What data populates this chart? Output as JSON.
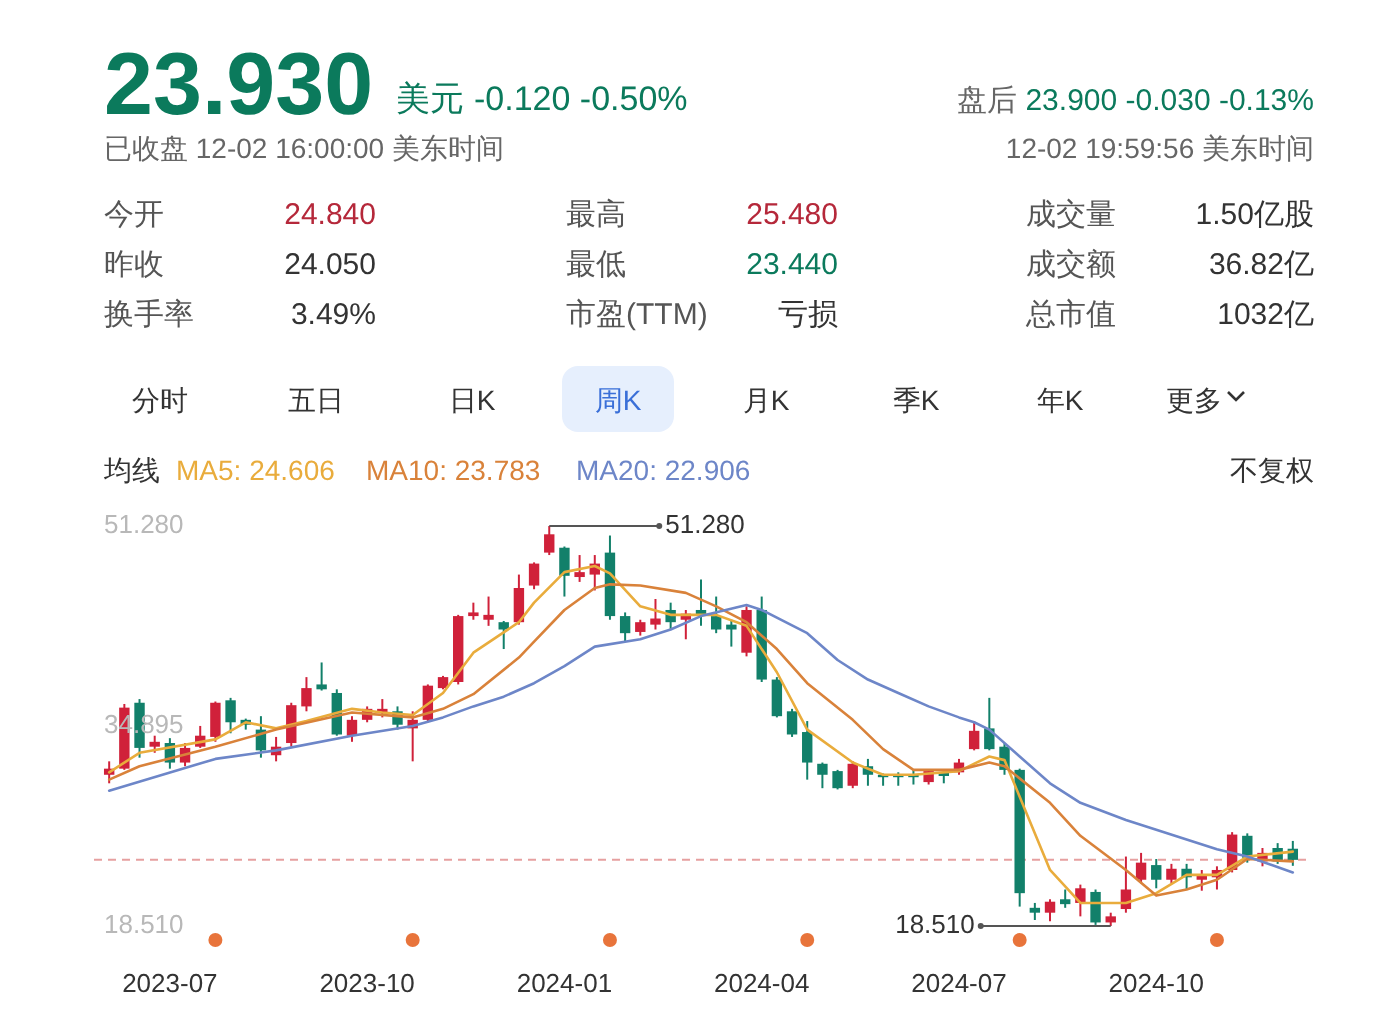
{
  "chart_data": [
    {
      "type": "other",
      "title": "23.930",
      "annotations": [
        "美元",
        "-0.120 -0.50%",
        "盘后",
        "23.900 -0.030 -0.13%",
        "已收盘 12-02 16:00:00 美东时间",
        "12-02 19:59:56 美东时间",
        "今开",
        "24.840",
        "最高",
        "25.480",
        "成交量",
        "1.50亿股",
        "昨收",
        "24.050",
        "最低",
        "23.440",
        "成交额",
        "36.82亿",
        "换手率",
        "3.49%",
        "市盈(TTM)",
        "亏损",
        "总市值",
        "1032亿",
        "分时",
        "五日",
        "日K",
        "周K",
        "月K",
        "季K",
        "年K",
        "更多"
      ]
    },
    {
      "type": "candlestick",
      "x": [
        "2023-06-05",
        "2023-06-12",
        "2023-06-19",
        "2023-06-26",
        "2023-07-03",
        "2023-07-10",
        "2023-07-17",
        "2023-07-24",
        "2023-07-31",
        "2023-08-07",
        "2023-08-14",
        "2023-08-21",
        "2023-08-28",
        "2023-09-04",
        "2023-09-11",
        "2023-09-18",
        "2023-09-25",
        "2023-10-02",
        "2023-10-09",
        "2023-10-16",
        "2023-10-23",
        "2023-10-30",
        "2023-11-06",
        "2023-11-13",
        "2023-11-20",
        "2023-11-27",
        "2023-12-04",
        "2023-12-11",
        "2023-12-18",
        "2023-12-25",
        "2024-01-01",
        "2024-01-08",
        "2024-01-15",
        "2024-01-22",
        "2024-01-29",
        "2024-02-05",
        "2024-02-12",
        "2024-02-19",
        "2024-02-26",
        "2024-03-04",
        "2024-03-11",
        "2024-03-18",
        "2024-03-25",
        "2024-04-01",
        "2024-04-08",
        "2024-04-15",
        "2024-04-22",
        "2024-04-29",
        "2024-05-06",
        "2024-05-13",
        "2024-05-20",
        "2024-05-27",
        "2024-06-03",
        "2024-06-10",
        "2024-06-17",
        "2024-06-24",
        "2024-07-01",
        "2024-07-08",
        "2024-07-15",
        "2024-07-22",
        "2024-07-29",
        "2024-08-05",
        "2024-08-12",
        "2024-08-19",
        "2024-08-26",
        "2024-09-02",
        "2024-09-09",
        "2024-09-16",
        "2024-09-23",
        "2024-09-30",
        "2024-10-07",
        "2024-10-14",
        "2024-10-21",
        "2024-10-28",
        "2024-11-04",
        "2024-11-11",
        "2024-11-18",
        "2024-11-25",
        "2024-12-02"
      ],
      "ohlc": [
        [
          30.9,
          32.0,
          30.2,
          31.4
        ],
        [
          31.4,
          36.7,
          31.3,
          36.4
        ],
        [
          36.8,
          37.1,
          32.3,
          33.1
        ],
        [
          33.2,
          34.1,
          32.7,
          33.6
        ],
        [
          33.5,
          33.9,
          31.4,
          31.9
        ],
        [
          31.9,
          33.5,
          31.6,
          33.1
        ],
        [
          33.2,
          34.9,
          33.1,
          34.1
        ],
        [
          34.0,
          36.9,
          33.6,
          36.8
        ],
        [
          37.0,
          37.2,
          34.3,
          35.2
        ],
        [
          35.4,
          35.5,
          34.6,
          35.0
        ],
        [
          34.6,
          35.7,
          32.3,
          32.9
        ],
        [
          32.5,
          34.0,
          32.0,
          33.2
        ],
        [
          33.5,
          36.8,
          33.2,
          36.6
        ],
        [
          36.5,
          38.9,
          36.1,
          38.0
        ],
        [
          38.3,
          40.1,
          37.8,
          37.9
        ],
        [
          37.6,
          37.9,
          34.1,
          34.2
        ],
        [
          34.1,
          35.7,
          33.6,
          35.4
        ],
        [
          35.4,
          36.5,
          35.2,
          36.3
        ],
        [
          36.0,
          37.1,
          35.6,
          36.3
        ],
        [
          36.1,
          36.5,
          34.6,
          35.0
        ],
        [
          34.7,
          36.1,
          32.0,
          35.4
        ],
        [
          35.4,
          38.3,
          35.2,
          38.2
        ],
        [
          38.0,
          39.0,
          37.9,
          38.9
        ],
        [
          38.5,
          44.0,
          38.3,
          43.9
        ],
        [
          43.9,
          45.0,
          43.6,
          44.2
        ],
        [
          43.6,
          45.5,
          43.1,
          44.0
        ],
        [
          43.4,
          43.5,
          41.2,
          42.8
        ],
        [
          43.4,
          47.3,
          43.2,
          46.2
        ],
        [
          46.4,
          48.3,
          46.1,
          48.2
        ],
        [
          49.1,
          51.28,
          48.9,
          50.6
        ],
        [
          49.5,
          49.6,
          45.5,
          47.2
        ],
        [
          47.1,
          48.9,
          46.7,
          47.5
        ],
        [
          47.3,
          48.9,
          46.0,
          48.2
        ],
        [
          49.1,
          50.5,
          43.6,
          43.9
        ],
        [
          43.9,
          44.2,
          41.8,
          42.5
        ],
        [
          42.6,
          43.6,
          42.3,
          43.4
        ],
        [
          43.2,
          45.3,
          42.8,
          43.7
        ],
        [
          44.4,
          45.0,
          42.8,
          43.4
        ],
        [
          43.6,
          44.4,
          42.0,
          44.1
        ],
        [
          44.4,
          46.9,
          43.1,
          44.0
        ],
        [
          43.9,
          45.5,
          42.5,
          42.8
        ],
        [
          43.2,
          43.6,
          41.4,
          42.8
        ],
        [
          40.9,
          44.7,
          40.6,
          44.4
        ],
        [
          44.4,
          45.5,
          38.5,
          38.7
        ],
        [
          38.7,
          38.9,
          35.6,
          35.7
        ],
        [
          36.1,
          36.3,
          34.0,
          34.2
        ],
        [
          34.4,
          35.3,
          30.5,
          31.9
        ],
        [
          31.8,
          31.9,
          29.8,
          30.9
        ],
        [
          31.2,
          31.3,
          29.7,
          29.8
        ],
        [
          30.0,
          32.0,
          29.8,
          31.8
        ],
        [
          31.6,
          32.2,
          30.0,
          30.9
        ],
        [
          30.9,
          31.0,
          30.0,
          30.7
        ],
        [
          30.9,
          31.1,
          30.0,
          30.7
        ],
        [
          30.9,
          31.3,
          30.1,
          30.7
        ],
        [
          30.3,
          31.3,
          30.1,
          31.2
        ],
        [
          31.1,
          31.3,
          30.2,
          30.8
        ],
        [
          31.1,
          32.2,
          30.9,
          31.9
        ],
        [
          33.0,
          35.3,
          32.9,
          34.5
        ],
        [
          34.7,
          37.2,
          32.9,
          33.0
        ],
        [
          33.2,
          33.5,
          30.9,
          31.3
        ],
        [
          31.3,
          31.4,
          20.1,
          21.2
        ],
        [
          20.0,
          20.4,
          19.0,
          19.6
        ],
        [
          19.6,
          20.7,
          18.9,
          20.5
        ],
        [
          20.7,
          21.5,
          20.0,
          20.3
        ],
        [
          20.4,
          21.9,
          19.3,
          21.6
        ],
        [
          21.3,
          21.5,
          18.6,
          18.8
        ],
        [
          18.8,
          19.6,
          18.51,
          19.3
        ],
        [
          19.9,
          24.2,
          19.6,
          21.5
        ],
        [
          22.3,
          24.5,
          22.0,
          23.7
        ],
        [
          23.5,
          24.0,
          21.6,
          22.3
        ],
        [
          22.3,
          23.6,
          22.0,
          23.2
        ],
        [
          23.2,
          23.6,
          21.5,
          22.5
        ],
        [
          22.3,
          23.1,
          21.4,
          22.7
        ],
        [
          22.5,
          23.4,
          21.5,
          23.1
        ],
        [
          23.1,
          26.2,
          22.9,
          26.0
        ],
        [
          25.9,
          26.1,
          23.7,
          24.1
        ],
        [
          23.8,
          24.9,
          23.4,
          24.5
        ],
        [
          24.9,
          25.3,
          23.6,
          23.8
        ],
        [
          24.84,
          25.48,
          23.44,
          23.93
        ]
      ],
      "colors": [
        "#d0213a",
        "#d0213a",
        "#12806a",
        "#d0213a",
        "#12806a",
        "#d0213a",
        "#d0213a",
        "#d0213a",
        "#12806a",
        "#12806a",
        "#12806a",
        "#d0213a",
        "#d0213a",
        "#d0213a",
        "#12806a",
        "#12806a",
        "#d0213a",
        "#d0213a",
        "#d0213a",
        "#12806a",
        "#d0213a",
        "#d0213a",
        "#d0213a",
        "#d0213a",
        "#d0213a",
        "#d0213a",
        "#12806a",
        "#d0213a",
        "#d0213a",
        "#d0213a",
        "#12806a",
        "#d0213a",
        "#d0213a",
        "#12806a",
        "#12806a",
        "#d0213a",
        "#d0213a",
        "#12806a",
        "#d0213a",
        "#12806a",
        "#12806a",
        "#12806a",
        "#d0213a",
        "#12806a",
        "#12806a",
        "#12806a",
        "#12806a",
        "#12806a",
        "#12806a",
        "#d0213a",
        "#12806a",
        "#12806a",
        "#12806a",
        "#12806a",
        "#d0213a",
        "#12806a",
        "#d0213a",
        "#d0213a",
        "#12806a",
        "#12806a",
        "#12806a",
        "#12806a",
        "#d0213a",
        "#12806a",
        "#d0213a",
        "#12806a",
        "#d0213a",
        "#d0213a",
        "#d0213a",
        "#12806a",
        "#d0213a",
        "#12806a",
        "#d0213a",
        "#d0213a",
        "#d0213a",
        "#12806a",
        "#d0213a",
        "#12806a",
        "#12806a"
      ],
      "series": [
        {
          "name": "MA5: 24.606",
          "type": "line",
          "color": "#e9ac3c",
          "x": [
            "2023-06-05",
            "2023-06-19",
            "2023-07-24",
            "2023-08-07",
            "2023-08-21",
            "2023-09-04",
            "2023-09-25",
            "2023-10-09",
            "2023-10-23",
            "2023-11-06",
            "2023-11-20",
            "2023-12-11",
            "2023-12-18",
            "2024-01-01",
            "2024-01-15",
            "2024-01-22",
            "2024-02-05",
            "2024-02-19",
            "2024-03-11",
            "2024-03-25",
            "2024-04-08",
            "2024-04-22",
            "2024-05-13",
            "2024-05-27",
            "2024-06-10",
            "2024-07-01",
            "2024-07-15",
            "2024-07-22",
            "2024-08-12",
            "2024-08-26",
            "2024-09-16",
            "2024-09-30",
            "2024-10-14",
            "2024-10-28",
            "2024-11-11",
            "2024-12-02"
          ],
          "values": [
            31.1,
            32.7,
            33.8,
            35.2,
            34.7,
            35.3,
            36.3,
            36.0,
            35.8,
            37.6,
            40.9,
            43.4,
            45.0,
            47.5,
            48.0,
            47.4,
            44.7,
            44.0,
            44.0,
            43.1,
            39.3,
            34.6,
            31.9,
            30.9,
            30.9,
            31.2,
            32.4,
            32.1,
            23.1,
            20.4,
            20.4,
            21.2,
            22.7,
            22.7,
            24.2,
            24.6
          ]
        },
        {
          "name": "MA10: 23.783",
          "type": "line",
          "color": "#d9823a",
          "x": [
            "2023-06-05",
            "2023-06-19",
            "2023-07-24",
            "2023-08-21",
            "2023-09-25",
            "2023-10-23",
            "2023-11-06",
            "2023-11-20",
            "2023-12-11",
            "2023-12-18",
            "2024-01-01",
            "2024-01-15",
            "2024-01-22",
            "2024-02-05",
            "2024-02-26",
            "2024-03-11",
            "2024-03-25",
            "2024-04-08",
            "2024-04-22",
            "2024-05-13",
            "2024-05-27",
            "2024-06-10",
            "2024-07-01",
            "2024-07-15",
            "2024-07-22",
            "2024-08-12",
            "2024-08-26",
            "2024-09-16",
            "2024-09-30",
            "2024-10-14",
            "2024-10-28",
            "2024-11-11",
            "2024-12-02"
          ],
          "values": [
            30.5,
            31.6,
            33.2,
            34.6,
            36.0,
            35.6,
            36.3,
            37.5,
            40.5,
            41.8,
            44.4,
            46.2,
            46.5,
            46.4,
            45.8,
            44.7,
            43.4,
            41.2,
            38.4,
            35.4,
            33.0,
            31.3,
            31.3,
            31.9,
            31.6,
            28.6,
            25.9,
            23.1,
            21.0,
            21.5,
            22.3,
            24.0,
            23.8
          ]
        },
        {
          "name": "MA20: 22.906",
          "type": "line",
          "color": "#6d86c8",
          "x": [
            "2023-06-05",
            "2023-07-24",
            "2023-08-21",
            "2023-09-25",
            "2023-10-23",
            "2023-11-06",
            "2023-11-20",
            "2023-12-04",
            "2023-12-18",
            "2024-01-01",
            "2024-01-15",
            "2024-02-05",
            "2024-02-19",
            "2024-03-04",
            "2024-03-25",
            "2024-04-01",
            "2024-04-22",
            "2024-05-06",
            "2024-05-20",
            "2024-06-03",
            "2024-06-17",
            "2024-07-01",
            "2024-07-08",
            "2024-07-15",
            "2024-07-29",
            "2024-08-12",
            "2024-08-26",
            "2024-09-16",
            "2024-09-30",
            "2024-10-14",
            "2024-10-28",
            "2024-11-11",
            "2024-12-02"
          ],
          "values": [
            29.6,
            32.2,
            32.9,
            34.1,
            34.9,
            35.6,
            36.5,
            37.3,
            38.4,
            39.8,
            41.4,
            42.0,
            42.8,
            43.9,
            44.8,
            44.4,
            42.5,
            40.3,
            38.7,
            37.6,
            36.5,
            35.6,
            35.2,
            34.6,
            32.4,
            30.2,
            28.6,
            27.2,
            26.4,
            25.6,
            24.8,
            24.2,
            22.9
          ]
        }
      ],
      "legend_title": "均线",
      "legend": "top left",
      "grid": false,
      "xlim": [
        "2023-05-29",
        "2024-12-09"
      ],
      "xticks": [
        {
          "value": "2023-07-03",
          "label": "2023-07"
        },
        {
          "value": "2023-10-02",
          "label": "2023-10"
        },
        {
          "value": "2024-01-01",
          "label": "2024-01"
        },
        {
          "value": "2024-04-01",
          "label": "2024-04"
        },
        {
          "value": "2024-07-01",
          "label": "2024-07"
        },
        {
          "value": "2024-09-30",
          "label": "2024-10"
        }
      ],
      "ylim": [
        18.51,
        51.28
      ],
      "yticks": [
        {
          "value": 18.51,
          "label": "18.510"
        },
        34.895,
        {
          "value": 51.28,
          "label": "51.280"
        }
      ],
      "ref_lines": [
        {
          "axis": "y",
          "value": 23.93,
          "color": "#e6a0a0",
          "line_style": "dashed"
        }
      ],
      "annotations": [
        {
          "text": "51.280",
          "x": "2023-12-25",
          "y": 51.28
        },
        {
          "text": "18.510",
          "x": "2024-09-09",
          "y": 18.51
        },
        "不复权"
      ]
    }
  ]
}
